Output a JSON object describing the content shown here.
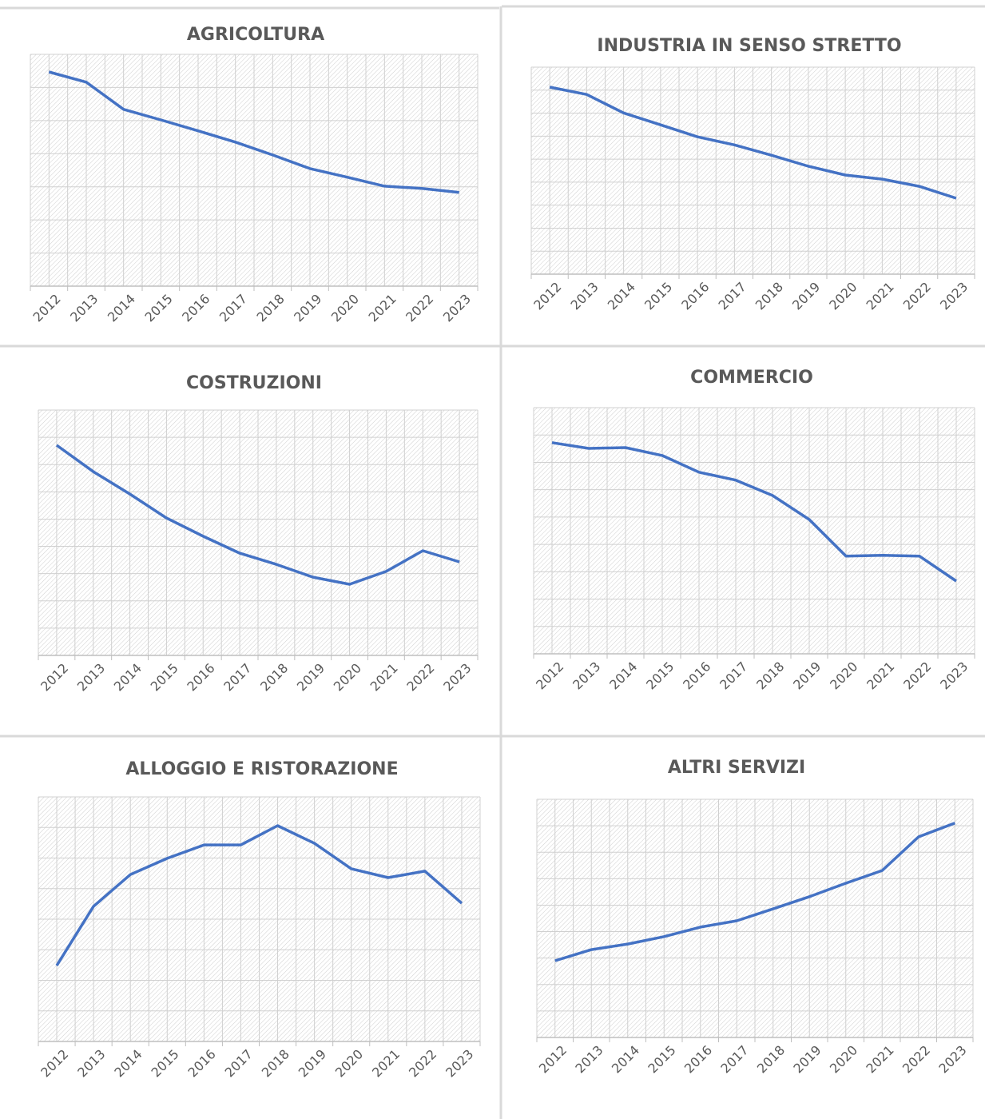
{
  "chart_data": [
    {
      "type": "line",
      "title": "AGRICOLTURA",
      "color": "#4472c4",
      "categories": [
        "2012",
        "2013",
        "2014",
        "2015",
        "2016",
        "2017",
        "2018",
        "2019",
        "2020",
        "2021",
        "2022",
        "2023"
      ],
      "values": [
        6.47,
        6.16,
        5.34,
        5.02,
        4.69,
        4.35,
        3.96,
        3.55,
        3.29,
        3.02,
        2.95,
        2.83
      ],
      "ylim": [
        0,
        7
      ],
      "yticks": [
        0,
        1,
        2,
        3,
        4,
        5,
        6,
        7
      ],
      "grid": true
    },
    {
      "type": "line",
      "title": "INDUSTRIA IN SENSO STRETTO",
      "color": "#4472c4",
      "categories": [
        "2012",
        "2013",
        "2014",
        "2015",
        "2016",
        "2017",
        "2018",
        "2019",
        "2020",
        "2021",
        "2022",
        "2023"
      ],
      "values": [
        8.13,
        7.81,
        7.01,
        6.49,
        5.97,
        5.62,
        5.17,
        4.69,
        4.31,
        4.13,
        3.82,
        3.3
      ],
      "ylim": [
        0,
        9
      ],
      "yticks": [
        0,
        1,
        2,
        3,
        4,
        5,
        6,
        7,
        8,
        9
      ],
      "grid": true
    },
    {
      "type": "line",
      "title": "COSTRUZIONI",
      "color": "#4472c4",
      "categories": [
        "2012",
        "2013",
        "2014",
        "2015",
        "2016",
        "2017",
        "2018",
        "2019",
        "2020",
        "2021",
        "2022",
        "2023"
      ],
      "values": [
        7.71,
        6.74,
        5.92,
        5.04,
        4.37,
        3.75,
        3.34,
        2.87,
        2.61,
        3.08,
        3.84,
        3.43
      ],
      "ylim": [
        0,
        9
      ],
      "yticks": [
        0,
        1,
        2,
        3,
        4,
        5,
        6,
        7,
        8,
        9
      ],
      "grid": true
    },
    {
      "type": "line",
      "title": "COMMERCIO",
      "color": "#4472c4",
      "categories": [
        "2012",
        "2013",
        "2014",
        "2015",
        "2016",
        "2017",
        "2018",
        "2019",
        "2020",
        "2021",
        "2022",
        "2023"
      ],
      "values": [
        7.72,
        7.51,
        7.54,
        7.25,
        6.64,
        6.35,
        5.79,
        4.91,
        3.57,
        3.6,
        3.57,
        2.66
      ],
      "ylim": [
        0,
        9
      ],
      "yticks": [
        0,
        1,
        2,
        3,
        4,
        5,
        6,
        7,
        8,
        9
      ],
      "grid": true
    },
    {
      "type": "line",
      "title": "ALLOGGIO E RISTORAZIONE",
      "color": "#4472c4",
      "categories": [
        "2012",
        "2013",
        "2014",
        "2015",
        "2016",
        "2017",
        "2018",
        "2019",
        "2020",
        "2021",
        "2022",
        "2023"
      ],
      "values": [
        2.48,
        4.42,
        5.46,
        5.99,
        6.43,
        6.43,
        7.06,
        6.48,
        5.65,
        5.36,
        5.57,
        4.52
      ],
      "ylim": [
        0,
        8
      ],
      "yticks": [
        0,
        1,
        2,
        3,
        4,
        5,
        6,
        7,
        8
      ],
      "grid": true
    },
    {
      "type": "line",
      "title": "ALTRI SERVIZI",
      "color": "#4472c4",
      "categories": [
        "2012",
        "2013",
        "2014",
        "2015",
        "2016",
        "2017",
        "2018",
        "2019",
        "2020",
        "2021",
        "2022",
        "2023"
      ],
      "values": [
        2.9,
        3.32,
        3.53,
        3.81,
        4.17,
        4.41,
        4.86,
        5.32,
        5.83,
        6.31,
        7.58,
        8.1
      ],
      "ylim": [
        0,
        9
      ],
      "yticks": [
        0,
        1,
        2,
        3,
        4,
        5,
        6,
        7,
        8,
        9
      ],
      "grid": true
    }
  ]
}
